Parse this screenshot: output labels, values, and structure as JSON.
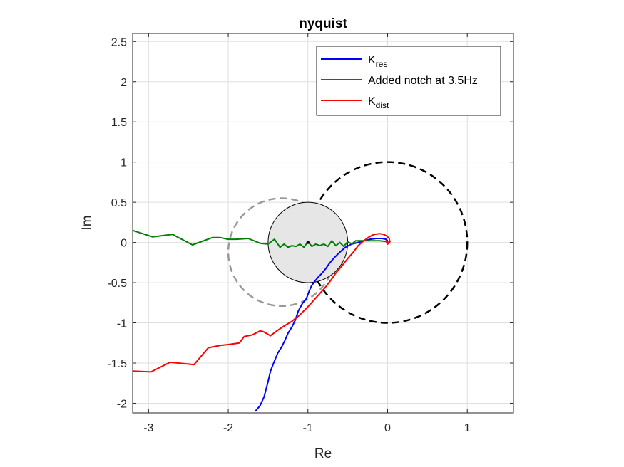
{
  "chart_data": {
    "type": "line",
    "title": "nyquist",
    "xlabel": "Re",
    "ylabel": "Im",
    "xlim": [
      -3.2,
      1.58
    ],
    "ylim": [
      -2.12,
      2.6
    ],
    "grid": true,
    "legend_position": "top-right",
    "xticks": [
      -3,
      -2,
      -1,
      0,
      1
    ],
    "xtick_labels": [
      "-3",
      "-2",
      "-1",
      "0",
      "1"
    ],
    "yticks": [
      -2,
      -1.5,
      -1,
      -0.5,
      0,
      0.5,
      1,
      1.5,
      2,
      2.5
    ],
    "ytick_labels": [
      "-2",
      "-1.5",
      "-1",
      "-0.5",
      "0",
      "0.5",
      "1",
      "1.5",
      "2",
      "2.5"
    ],
    "legend": [
      {
        "main": "K",
        "sub": "res",
        "color": "#0000ff"
      },
      {
        "main": "Added notch at 3.5Hz",
        "sub": "",
        "color": "#008000"
      },
      {
        "main": "K",
        "sub": "dist",
        "color": "#ff0000"
      }
    ],
    "series": [
      {
        "color": "#0000ff",
        "x": [
          -1.66,
          -1.6,
          -1.55,
          -1.5,
          -1.47,
          -1.43,
          -1.38,
          -1.33,
          -1.29,
          -1.25,
          -1.2,
          -1.16,
          -1.12,
          -1.07,
          -1.02,
          -0.99,
          -0.96,
          -0.92,
          -0.87,
          -0.83,
          -0.78,
          -0.73,
          -0.67,
          -0.6,
          -0.53,
          -0.45,
          -0.37,
          -0.3,
          -0.22,
          -0.14,
          -0.07,
          -0.02,
          0.0
        ],
        "y": [
          -2.1,
          -2.03,
          -1.92,
          -1.73,
          -1.6,
          -1.5,
          -1.38,
          -1.3,
          -1.22,
          -1.13,
          -1.05,
          -0.97,
          -0.85,
          -0.76,
          -0.7,
          -0.62,
          -0.55,
          -0.49,
          -0.43,
          -0.39,
          -0.33,
          -0.26,
          -0.19,
          -0.12,
          -0.06,
          -0.02,
          0.0,
          0.02,
          0.04,
          0.05,
          0.05,
          0.04,
          0.02
        ]
      },
      {
        "color": "#008000",
        "x": [
          -3.2,
          -2.95,
          -2.7,
          -2.45,
          -2.2,
          -2.1,
          -2.0,
          -1.9,
          -1.75,
          -1.6,
          -1.5,
          -1.42,
          -1.35,
          -1.3,
          -1.25,
          -1.2,
          -1.15,
          -1.1,
          -1.05,
          -1.0,
          -0.95,
          -0.9,
          -0.85,
          -0.8,
          -0.75,
          -0.7,
          -0.65,
          -0.6,
          -0.55,
          -0.5,
          -0.45,
          -0.4,
          -0.3,
          -0.2,
          -0.1,
          0.0
        ],
        "y": [
          0.15,
          0.07,
          0.1,
          -0.03,
          0.06,
          0.06,
          0.04,
          0.04,
          0.05,
          -0.01,
          -0.02,
          0.04,
          -0.06,
          -0.02,
          -0.06,
          -0.04,
          -0.05,
          -0.02,
          -0.06,
          0.01,
          -0.05,
          -0.02,
          -0.04,
          -0.02,
          -0.05,
          0.02,
          -0.04,
          0.0,
          -0.05,
          0.01,
          -0.02,
          0.02,
          0.02,
          0.02,
          0.02,
          0.01
        ]
      },
      {
        "color": "#ff0000",
        "x": [
          -3.2,
          -2.97,
          -2.73,
          -2.43,
          -2.25,
          -2.1,
          -2.0,
          -1.86,
          -1.8,
          -1.7,
          -1.6,
          -1.56,
          -1.47,
          -1.39,
          -1.3,
          -1.2,
          -1.1,
          -1.0,
          -0.9,
          -0.8,
          -0.72,
          -0.65,
          -0.58,
          -0.5,
          -0.43,
          -0.37,
          -0.3,
          -0.23,
          -0.17,
          -0.1,
          -0.05,
          -0.01,
          0.02,
          0.03,
          0.0,
          -0.02,
          0.01
        ],
        "y": [
          -1.6,
          -1.61,
          -1.49,
          -1.52,
          -1.31,
          -1.28,
          -1.27,
          -1.25,
          -1.17,
          -1.15,
          -1.1,
          -1.11,
          -1.16,
          -1.1,
          -1.04,
          -0.98,
          -0.9,
          -0.8,
          -0.69,
          -0.58,
          -0.48,
          -0.38,
          -0.3,
          -0.2,
          -0.12,
          -0.04,
          0.02,
          0.07,
          0.1,
          0.11,
          0.1,
          0.08,
          0.05,
          0.01,
          -0.02,
          0.02,
          0.0
        ]
      }
    ],
    "circles": [
      {
        "center": [
          0,
          0
        ],
        "radius": 1.0,
        "style": "dashed",
        "color": "#000000"
      },
      {
        "center": [
          -1.33,
          -0.12
        ],
        "radius": 0.67,
        "style": "dashed",
        "color": "#999999"
      },
      {
        "center": [
          -1,
          0
        ],
        "radius": 0.5,
        "style": "solid-filled",
        "color": "#000000",
        "fill": "#e6e6e6"
      }
    ],
    "point": {
      "x": -1,
      "y": 0,
      "color": "#000000"
    }
  }
}
